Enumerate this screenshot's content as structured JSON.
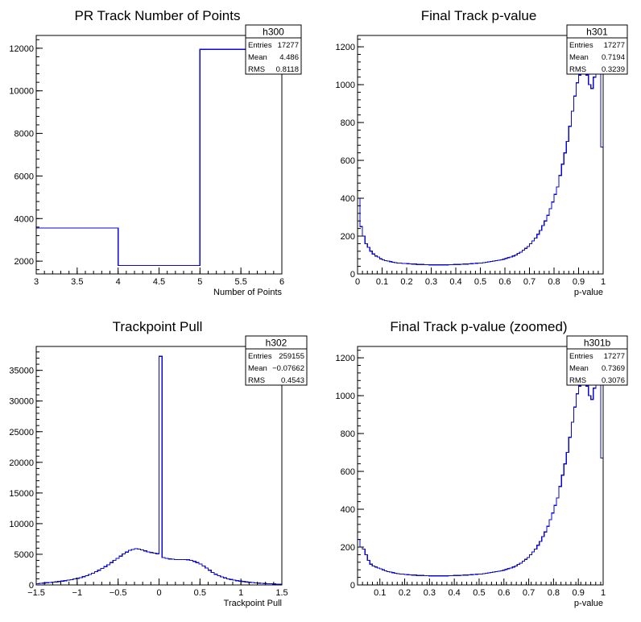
{
  "colors": {
    "hist": "#0a0ad2",
    "axis": "#000000",
    "background": "#ffffff"
  },
  "chart_data": [
    {
      "id": "h300",
      "type": "bar",
      "title": "PR Track Number of Points",
      "xlabel": "Number of Points",
      "ylabel": "",
      "xlim": [
        3,
        6
      ],
      "ylim": [
        1400,
        12600
      ],
      "xticks": [
        3,
        3.5,
        4,
        4.5,
        5,
        5.5,
        6
      ],
      "xtick_labels": [
        "3",
        "3.5",
        "4",
        "4.5",
        "5",
        "5.5",
        "6"
      ],
      "yticks": [
        2000,
        4000,
        6000,
        8000,
        10000,
        12000
      ],
      "ytick_labels": [
        "2000",
        "4000",
        "6000",
        "8000",
        "10000",
        "12000"
      ],
      "bin_edges": [
        3,
        4,
        5,
        6
      ],
      "values": [
        3560,
        1800,
        11950
      ],
      "stats": {
        "name": "h300",
        "entries_label": "Entries",
        "entries": "17277",
        "mean_label": "Mean",
        "mean": "4.486",
        "rms_label": "RMS",
        "rms": "0.8118"
      }
    },
    {
      "id": "h301",
      "type": "bar",
      "title": "Final Track p-value",
      "xlabel": "p-value",
      "ylabel": "",
      "xlim": [
        0,
        1
      ],
      "ylim": [
        0,
        1260
      ],
      "xticks": [
        0,
        0.1,
        0.2,
        0.3,
        0.4,
        0.5,
        0.6,
        0.7,
        0.8,
        0.9,
        1
      ],
      "xtick_labels": [
        "0",
        "0.1",
        "0.2",
        "0.3",
        "0.4",
        "0.5",
        "0.6",
        "0.7",
        "0.8",
        "0.9",
        "1"
      ],
      "yticks": [
        0,
        200,
        400,
        600,
        800,
        1000,
        1200
      ],
      "ytick_labels": [
        "0",
        "200",
        "400",
        "600",
        "800",
        "1000",
        "1200"
      ],
      "bin_edges_range": [
        0,
        1
      ],
      "values": [
        400,
        250,
        200,
        160,
        140,
        120,
        105,
        95,
        90,
        80,
        75,
        70,
        68,
        65,
        62,
        60,
        58,
        58,
        55,
        55,
        54,
        53,
        52,
        52,
        50,
        50,
        50,
        49,
        49,
        48,
        48,
        48,
        48,
        48,
        48,
        48,
        48,
        49,
        49,
        50,
        50,
        50,
        51,
        52,
        52,
        53,
        54,
        55,
        56,
        57,
        58,
        60,
        62,
        64,
        66,
        68,
        70,
        72,
        75,
        78,
        82,
        86,
        90,
        95,
        100,
        108,
        115,
        125,
        135,
        145,
        160,
        175,
        190,
        210,
        230,
        255,
        280,
        310,
        345,
        380,
        420,
        460,
        520,
        580,
        640,
        700,
        780,
        860,
        940,
        1010,
        1050,
        1060,
        1060,
        1050,
        1000,
        980,
        1040,
        1060,
        1060,
        670
      ],
      "stats": {
        "name": "h301",
        "entries_label": "Entries",
        "entries": "17277",
        "mean_label": "Mean",
        "mean": "0.7194",
        "rms_label": "RMS",
        "rms": "0.3239"
      }
    },
    {
      "id": "h302",
      "type": "bar",
      "title": "Trackpoint Pull",
      "xlabel": "Trackpoint Pull",
      "ylabel": "",
      "xlim": [
        -1.5,
        1.5
      ],
      "ylim": [
        0,
        38900
      ],
      "xticks": [
        -1.5,
        -1,
        -0.5,
        0,
        0.5,
        1,
        1.5
      ],
      "xtick_labels": [
        "−1.5",
        "−1",
        "−0.5",
        "0",
        "0.5",
        "1",
        "1.5"
      ],
      "yticks": [
        0,
        5000,
        10000,
        15000,
        20000,
        25000,
        30000,
        35000
      ],
      "ytick_labels": [
        "0",
        "5000",
        "10000",
        "15000",
        "20000",
        "25000",
        "30000",
        "35000"
      ],
      "bin_edges_range": [
        -1.5,
        1.5
      ],
      "values": [
        200,
        250,
        300,
        350,
        400,
        450,
        500,
        560,
        620,
        700,
        780,
        870,
        970,
        1080,
        1200,
        1350,
        1500,
        1700,
        1900,
        2150,
        2400,
        2700,
        3000,
        3300,
        3650,
        4000,
        4350,
        4700,
        5050,
        5350,
        5650,
        5800,
        5900,
        5850,
        5700,
        5550,
        5400,
        5300,
        5200,
        5100,
        37300,
        4450,
        4350,
        4250,
        4200,
        4150,
        4150,
        4150,
        4150,
        4100,
        4000,
        3850,
        3650,
        3400,
        3100,
        2750,
        2400,
        2050,
        1750,
        1500,
        1300,
        1150,
        1000,
        880,
        780,
        700,
        620,
        550,
        490,
        430,
        380,
        340,
        300,
        270,
        240,
        210,
        190,
        170,
        150,
        130
      ],
      "stats": {
        "name": "h302",
        "entries_label": "Entries",
        "entries": "259155",
        "mean_label": "Mean",
        "mean": "−0.07662",
        "rms_label": "RMS",
        "rms": "0.4543"
      }
    },
    {
      "id": "h301b",
      "type": "bar",
      "title": "Final Track p-value (zoomed)",
      "xlabel": "p-value",
      "ylabel": "",
      "xlim": [
        0.01,
        1
      ],
      "ylim": [
        0,
        1260
      ],
      "xticks": [
        0.1,
        0.2,
        0.3,
        0.4,
        0.5,
        0.6,
        0.7,
        0.8,
        0.9,
        1
      ],
      "xtick_labels": [
        "0.1",
        "0.2",
        "0.3",
        "0.4",
        "0.5",
        "0.6",
        "0.7",
        "0.8",
        "0.9",
        "1"
      ],
      "yticks": [
        0,
        200,
        400,
        600,
        800,
        1000,
        1200
      ],
      "ytick_labels": [
        "0",
        "200",
        "400",
        "600",
        "800",
        "1000",
        "1200"
      ],
      "bin_edges_range": [
        0.01,
        1
      ],
      "values": [
        240,
        200,
        190,
        160,
        130,
        110,
        100,
        95,
        90,
        85,
        80,
        75,
        70,
        68,
        65,
        62,
        60,
        58,
        57,
        55,
        54,
        53,
        52,
        52,
        50,
        50,
        50,
        49,
        49,
        48,
        48,
        48,
        48,
        48,
        48,
        48,
        48,
        49,
        49,
        50,
        50,
        50,
        51,
        52,
        52,
        53,
        54,
        55,
        56,
        57,
        58,
        60,
        62,
        64,
        66,
        68,
        70,
        72,
        75,
        78,
        82,
        86,
        90,
        95,
        100,
        108,
        115,
        125,
        135,
        145,
        160,
        175,
        190,
        210,
        230,
        255,
        280,
        310,
        345,
        380,
        420,
        460,
        520,
        580,
        640,
        700,
        780,
        860,
        940,
        1010,
        1050,
        1060,
        1060,
        1050,
        1000,
        980,
        1040,
        1060,
        1060,
        670
      ],
      "stats": {
        "name": "h301b",
        "entries_label": "Entries",
        "entries": "17277",
        "mean_label": "Mean",
        "mean": "0.7369",
        "rms_label": "RMS",
        "rms": "0.3076"
      }
    }
  ]
}
